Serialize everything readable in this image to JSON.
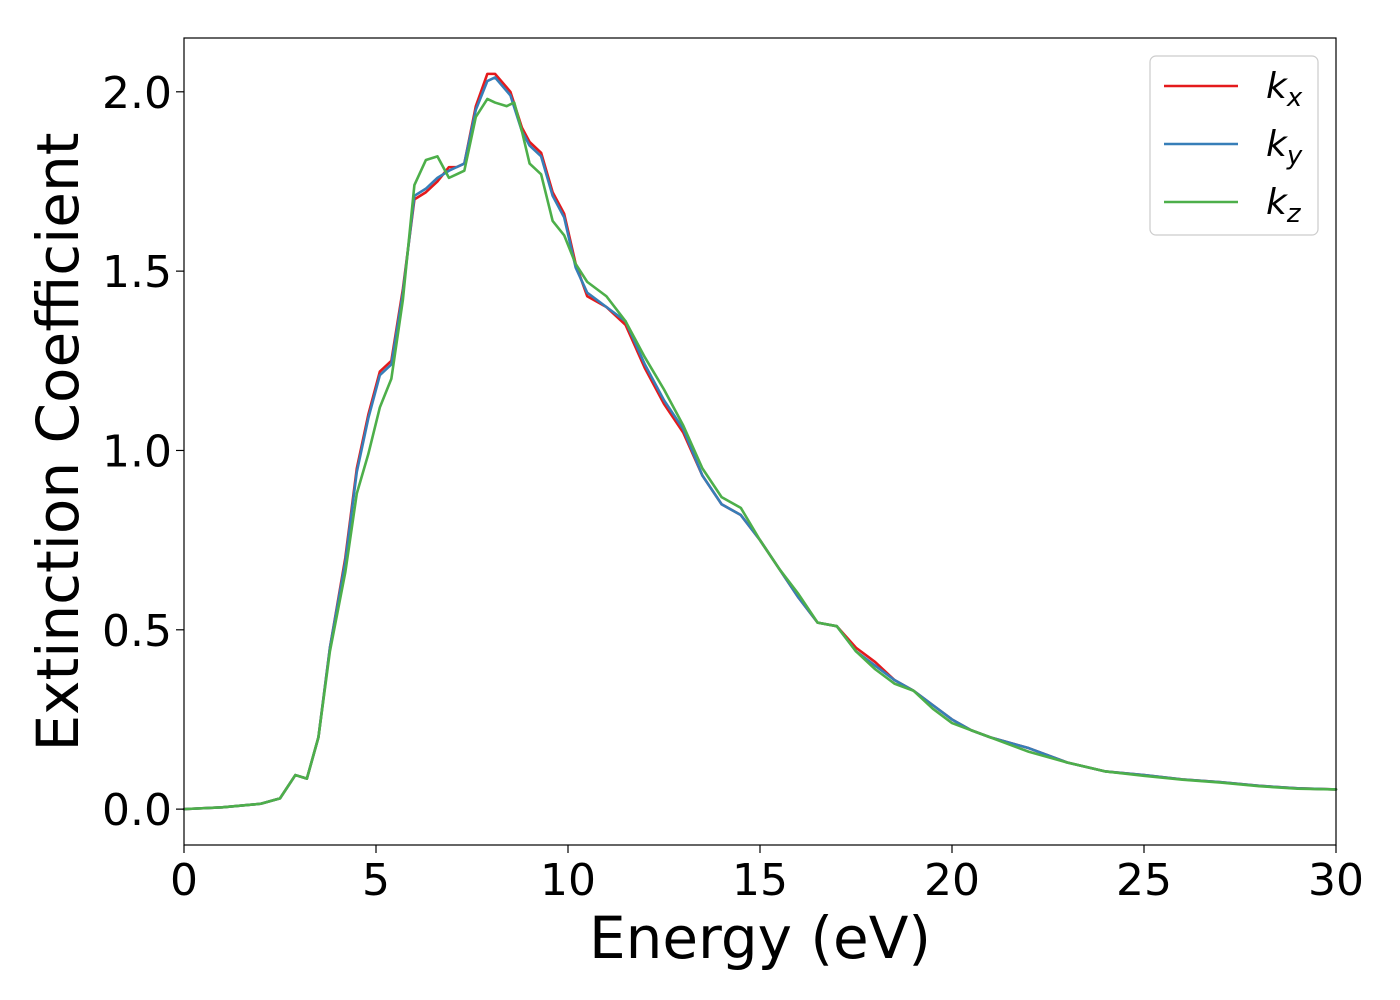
{
  "chart_data": {
    "type": "line",
    "title": "",
    "xlabel": "Energy (eV)",
    "ylabel": "Extinction Coefficient",
    "xlim": [
      0,
      30
    ],
    "ylim": [
      -0.1,
      2.15
    ],
    "xticks": [
      0,
      5,
      10,
      15,
      20,
      25,
      30
    ],
    "xtick_labels": [
      "0",
      "5",
      "10",
      "15",
      "20",
      "25",
      "30"
    ],
    "yticks": [
      0.0,
      0.5,
      1.0,
      1.5,
      2.0
    ],
    "ytick_labels": [
      "0.0",
      "0.5",
      "1.0",
      "1.5",
      "2.0"
    ],
    "grid": false,
    "legend_position": "top-right",
    "series": [
      {
        "name": "k_x",
        "label_main": "k",
        "label_sub": "x",
        "color": "#e41a1c",
        "points": [
          [
            0,
            0.0
          ],
          [
            1,
            0.005
          ],
          [
            2,
            0.015
          ],
          [
            2.5,
            0.03
          ],
          [
            2.9,
            0.095
          ],
          [
            3.2,
            0.085
          ],
          [
            3.5,
            0.2
          ],
          [
            3.8,
            0.45
          ],
          [
            4.2,
            0.7
          ],
          [
            4.5,
            0.95
          ],
          [
            4.8,
            1.1
          ],
          [
            5.1,
            1.22
          ],
          [
            5.4,
            1.25
          ],
          [
            5.7,
            1.45
          ],
          [
            6.0,
            1.7
          ],
          [
            6.3,
            1.72
          ],
          [
            6.6,
            1.75
          ],
          [
            6.9,
            1.79
          ],
          [
            7.1,
            1.79
          ],
          [
            7.3,
            1.8
          ],
          [
            7.6,
            1.96
          ],
          [
            7.9,
            2.05
          ],
          [
            8.1,
            2.05
          ],
          [
            8.5,
            2.0
          ],
          [
            8.8,
            1.9
          ],
          [
            9.0,
            1.86
          ],
          [
            9.3,
            1.83
          ],
          [
            9.6,
            1.72
          ],
          [
            9.9,
            1.66
          ],
          [
            10.2,
            1.52
          ],
          [
            10.5,
            1.43
          ],
          [
            11.0,
            1.4
          ],
          [
            11.5,
            1.35
          ],
          [
            12.0,
            1.23
          ],
          [
            12.5,
            1.13
          ],
          [
            13.0,
            1.05
          ],
          [
            13.5,
            0.93
          ],
          [
            14.0,
            0.85
          ],
          [
            14.5,
            0.82
          ],
          [
            15.0,
            0.75
          ],
          [
            15.5,
            0.67
          ],
          [
            16.0,
            0.59
          ],
          [
            16.5,
            0.52
          ],
          [
            17.0,
            0.51
          ],
          [
            17.5,
            0.45
          ],
          [
            18.0,
            0.41
          ],
          [
            18.5,
            0.36
          ],
          [
            19.0,
            0.33
          ],
          [
            19.5,
            0.29
          ],
          [
            20.0,
            0.25
          ],
          [
            20.5,
            0.22
          ],
          [
            21.0,
            0.2
          ],
          [
            22.0,
            0.17
          ],
          [
            23.0,
            0.13
          ],
          [
            24.0,
            0.105
          ],
          [
            25.0,
            0.095
          ],
          [
            26.0,
            0.083
          ],
          [
            27.0,
            0.075
          ],
          [
            28.0,
            0.065
          ],
          [
            29.0,
            0.058
          ],
          [
            30.0,
            0.055
          ]
        ]
      },
      {
        "name": "k_y",
        "label_main": "k",
        "label_sub": "y",
        "color": "#377eb8",
        "points": [
          [
            0,
            0.0
          ],
          [
            1,
            0.005
          ],
          [
            2,
            0.015
          ],
          [
            2.5,
            0.03
          ],
          [
            2.9,
            0.095
          ],
          [
            3.2,
            0.085
          ],
          [
            3.5,
            0.2
          ],
          [
            3.8,
            0.45
          ],
          [
            4.2,
            0.69
          ],
          [
            4.5,
            0.94
          ],
          [
            4.8,
            1.09
          ],
          [
            5.1,
            1.21
          ],
          [
            5.4,
            1.24
          ],
          [
            5.7,
            1.44
          ],
          [
            6.0,
            1.71
          ],
          [
            6.3,
            1.73
          ],
          [
            6.6,
            1.76
          ],
          [
            6.9,
            1.78
          ],
          [
            7.1,
            1.79
          ],
          [
            7.3,
            1.8
          ],
          [
            7.6,
            1.95
          ],
          [
            7.9,
            2.03
          ],
          [
            8.1,
            2.04
          ],
          [
            8.5,
            1.99
          ],
          [
            8.8,
            1.89
          ],
          [
            9.0,
            1.85
          ],
          [
            9.3,
            1.82
          ],
          [
            9.6,
            1.71
          ],
          [
            9.9,
            1.65
          ],
          [
            10.2,
            1.51
          ],
          [
            10.5,
            1.44
          ],
          [
            11.0,
            1.4
          ],
          [
            11.5,
            1.36
          ],
          [
            12.0,
            1.24
          ],
          [
            12.5,
            1.14
          ],
          [
            13.0,
            1.06
          ],
          [
            13.5,
            0.93
          ],
          [
            14.0,
            0.85
          ],
          [
            14.5,
            0.82
          ],
          [
            15.0,
            0.75
          ],
          [
            15.5,
            0.67
          ],
          [
            16.0,
            0.59
          ],
          [
            16.5,
            0.52
          ],
          [
            17.0,
            0.51
          ],
          [
            17.5,
            0.44
          ],
          [
            18.0,
            0.4
          ],
          [
            18.5,
            0.36
          ],
          [
            19.0,
            0.33
          ],
          [
            19.5,
            0.29
          ],
          [
            20.0,
            0.25
          ],
          [
            20.5,
            0.22
          ],
          [
            21.0,
            0.2
          ],
          [
            22.0,
            0.17
          ],
          [
            23.0,
            0.13
          ],
          [
            24.0,
            0.105
          ],
          [
            25.0,
            0.095
          ],
          [
            26.0,
            0.083
          ],
          [
            27.0,
            0.075
          ],
          [
            28.0,
            0.065
          ],
          [
            29.0,
            0.058
          ],
          [
            30.0,
            0.055
          ]
        ]
      },
      {
        "name": "k_z",
        "label_main": "k",
        "label_sub": "z",
        "color": "#4daf4a",
        "points": [
          [
            0,
            0.0
          ],
          [
            1,
            0.005
          ],
          [
            2,
            0.015
          ],
          [
            2.5,
            0.03
          ],
          [
            2.9,
            0.095
          ],
          [
            3.2,
            0.085
          ],
          [
            3.5,
            0.2
          ],
          [
            3.8,
            0.44
          ],
          [
            4.2,
            0.66
          ],
          [
            4.5,
            0.88
          ],
          [
            4.8,
            0.99
          ],
          [
            5.1,
            1.12
          ],
          [
            5.4,
            1.2
          ],
          [
            5.7,
            1.42
          ],
          [
            6.0,
            1.74
          ],
          [
            6.3,
            1.81
          ],
          [
            6.6,
            1.82
          ],
          [
            6.9,
            1.76
          ],
          [
            7.1,
            1.77
          ],
          [
            7.3,
            1.78
          ],
          [
            7.6,
            1.93
          ],
          [
            7.9,
            1.98
          ],
          [
            8.1,
            1.97
          ],
          [
            8.4,
            1.96
          ],
          [
            8.6,
            1.97
          ],
          [
            8.8,
            1.89
          ],
          [
            9.0,
            1.8
          ],
          [
            9.3,
            1.77
          ],
          [
            9.6,
            1.64
          ],
          [
            9.9,
            1.6
          ],
          [
            10.2,
            1.52
          ],
          [
            10.5,
            1.47
          ],
          [
            11.0,
            1.43
          ],
          [
            11.5,
            1.36
          ],
          [
            12.0,
            1.26
          ],
          [
            12.5,
            1.17
          ],
          [
            13.0,
            1.07
          ],
          [
            13.5,
            0.95
          ],
          [
            14.0,
            0.87
          ],
          [
            14.5,
            0.84
          ],
          [
            15.0,
            0.75
          ],
          [
            15.5,
            0.67
          ],
          [
            16.0,
            0.6
          ],
          [
            16.5,
            0.52
          ],
          [
            17.0,
            0.51
          ],
          [
            17.5,
            0.44
          ],
          [
            18.0,
            0.39
          ],
          [
            18.5,
            0.35
          ],
          [
            19.0,
            0.33
          ],
          [
            19.5,
            0.28
          ],
          [
            20.0,
            0.24
          ],
          [
            20.5,
            0.22
          ],
          [
            21.0,
            0.2
          ],
          [
            22.0,
            0.16
          ],
          [
            23.0,
            0.13
          ],
          [
            24.0,
            0.105
          ],
          [
            25.0,
            0.093
          ],
          [
            26.0,
            0.082
          ],
          [
            27.0,
            0.074
          ],
          [
            28.0,
            0.064
          ],
          [
            29.0,
            0.057
          ],
          [
            30.0,
            0.055
          ]
        ]
      }
    ]
  }
}
